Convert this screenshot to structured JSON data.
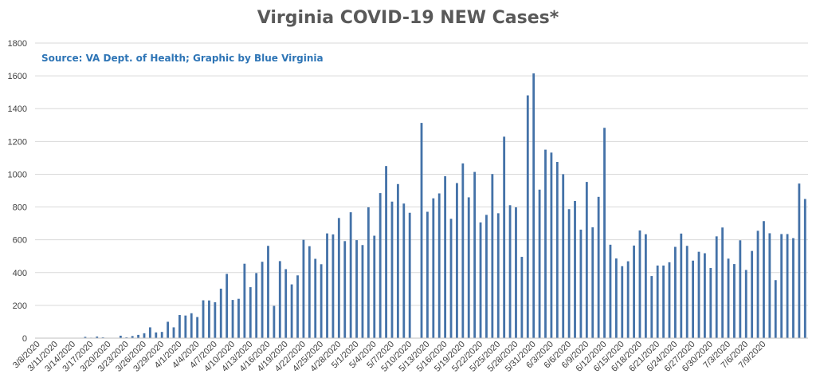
{
  "chart_data": {
    "type": "bar",
    "title": "Virginia COVID-19 NEW Cases*",
    "annotation": "Source: VA Dept. of Health; Graphic by Blue Virginia",
    "xlabel": "",
    "ylabel": "",
    "ylim": [
      0,
      1800
    ],
    "yticks": [
      0,
      200,
      400,
      600,
      800,
      1000,
      1200,
      1400,
      1600,
      1800
    ],
    "grid": true,
    "legend": "none",
    "colors": {
      "bar": "#4472a8",
      "grid": "#d9d9d9",
      "axis": "#bfbfbf",
      "annotation": "#2e75b6",
      "title": "#595959"
    },
    "tick_labels": [
      "3/8/2020",
      "3/11/2020",
      "3/14/2020",
      "3/17/2020",
      "3/20/2020",
      "3/23/2020",
      "3/26/2020",
      "3/29/2020",
      "4/1/2020",
      "4/4/2020",
      "4/7/2020",
      "4/10/2020",
      "4/13/2020",
      "4/16/2020",
      "4/19/2020",
      "4/22/2020",
      "4/25/2020",
      "4/28/2020",
      "5/1/2020",
      "5/4/2020",
      "5/7/2020",
      "5/10/2020",
      "5/13/2020",
      "5/16/2020",
      "5/19/2020",
      "5/22/2020",
      "5/25/2020",
      "5/28/2020",
      "5/31/2020",
      "6/3/2020",
      "6/6/2020",
      "6/9/2020",
      "6/12/2020",
      "6/15/2020",
      "6/18/2020",
      "6/21/2020",
      "6/24/2020",
      "6/27/2020",
      "6/30/2020",
      "7/3/2020",
      "7/6/2020",
      "7/9/2020"
    ],
    "x_start": "3/8/2020",
    "values": [
      0,
      0,
      0,
      0,
      0,
      0,
      0,
      0,
      8,
      3,
      10,
      5,
      0,
      0,
      15,
      5,
      13,
      20,
      30,
      66,
      35,
      38,
      100,
      66,
      141,
      138,
      152,
      129,
      231,
      230,
      219,
      302,
      392,
      233,
      240,
      454,
      311,
      397,
      466,
      563,
      197,
      470,
      421,
      328,
      383,
      600,
      561,
      484,
      451,
      639,
      633,
      733,
      592,
      768,
      598,
      568,
      798,
      625,
      885,
      1050,
      833,
      940,
      821,
      765,
      0,
      1313,
      771,
      853,
      883,
      988,
      728,
      946,
      1066,
      859,
      1014,
      706,
      752,
      1001,
      762,
      1229,
      811,
      798,
      496,
      1481,
      1615,
      906,
      1150,
      1132,
      1075,
      1000,
      787,
      837,
      662,
      953,
      676,
      862,
      1283,
      570,
      486,
      439,
      469,
      565,
      657,
      634,
      379,
      443,
      443,
      463,
      557,
      638,
      563,
      473,
      527,
      518,
      428,
      621,
      675,
      485,
      452,
      597,
      416,
      532,
      655,
      714,
      640,
      354,
      635,
      635,
      610,
      943,
      849
    ]
  }
}
